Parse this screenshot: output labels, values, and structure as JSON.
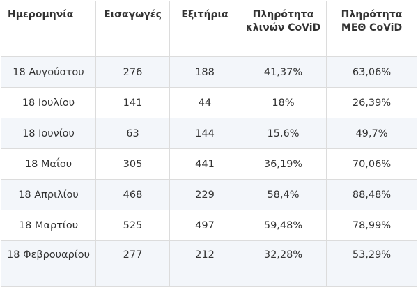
{
  "table": {
    "headers": [
      "Ημερομηνία",
      "Εισαγωγές",
      "Εξιτήρια",
      "Πληρότητα κλινών CoViD",
      "Πληρότητα ΜΕΘ CoViD"
    ],
    "rows": [
      [
        "18 Αυγούστου",
        "276",
        "188",
        "41,37%",
        "63,06%"
      ],
      [
        "18 Ιουλίου",
        "141",
        "44",
        "18%",
        "26,39%"
      ],
      [
        "18 Ιουνίου",
        "63",
        "144",
        "15,6%",
        "49,7%"
      ],
      [
        "18 Μαΐου",
        "305",
        "441",
        "36,19%",
        "70,06%"
      ],
      [
        "18 Απριλίου",
        "468",
        "229",
        "58,4%",
        "88,48%"
      ],
      [
        "18 Μαρτίου",
        "525",
        "497",
        "59,48%",
        "78,99%"
      ],
      [
        "18 Φεβρουαρίου",
        "277",
        "212",
        "32,28%",
        "53,29%"
      ]
    ]
  }
}
